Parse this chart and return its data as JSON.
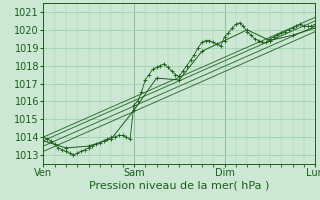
{
  "bg_color": "#cce8d4",
  "plot_bg_color": "#cce8d4",
  "grid_color": "#99ccaa",
  "line_color": "#1a5e1a",
  "marker_color": "#1a5e1a",
  "xlabel": "Pression niveau de la mer( hPa )",
  "yticks": [
    1013,
    1014,
    1015,
    1016,
    1017,
    1018,
    1019,
    1020,
    1021
  ],
  "ylim": [
    1012.5,
    1021.5
  ],
  "xlim": [
    0,
    72
  ],
  "xtick_positions": [
    0,
    24,
    48,
    72
  ],
  "xtick_labels": [
    "Ven",
    "Sam",
    "Dim",
    "Lun"
  ],
  "tick_fontsize": 7,
  "xlabel_fontsize": 8,
  "noisy_line": {
    "x": [
      0,
      1,
      2,
      3,
      4,
      5,
      6,
      7,
      8,
      9,
      10,
      11,
      12,
      13,
      14,
      15,
      16,
      17,
      18,
      19,
      20,
      21,
      22,
      23,
      24,
      25,
      26,
      27,
      28,
      29,
      30,
      31,
      32,
      33,
      34,
      35,
      36,
      37,
      38,
      39,
      40,
      41,
      42,
      43,
      44,
      45,
      46,
      47,
      48,
      49,
      50,
      51,
      52,
      53,
      54,
      55,
      56,
      57,
      58,
      59,
      60,
      61,
      62,
      63,
      64,
      65,
      66,
      67,
      68,
      69,
      70,
      71,
      72
    ],
    "y": [
      1014.0,
      1013.9,
      1013.8,
      1013.6,
      1013.4,
      1013.3,
      1013.2,
      1013.1,
      1013.0,
      1013.1,
      1013.2,
      1013.3,
      1013.4,
      1013.5,
      1013.6,
      1013.7,
      1013.8,
      1013.9,
      1014.0,
      1014.0,
      1014.1,
      1014.1,
      1014.0,
      1013.9,
      1015.8,
      1016.0,
      1016.5,
      1017.2,
      1017.5,
      1017.8,
      1017.9,
      1018.0,
      1018.1,
      1017.9,
      1017.7,
      1017.5,
      1017.4,
      1017.7,
      1018.0,
      1018.3,
      1018.6,
      1019.0,
      1019.3,
      1019.4,
      1019.4,
      1019.3,
      1019.2,
      1019.1,
      1019.6,
      1019.8,
      1020.1,
      1020.3,
      1020.4,
      1020.2,
      1019.9,
      1019.7,
      1019.5,
      1019.4,
      1019.3,
      1019.3,
      1019.5,
      1019.6,
      1019.7,
      1019.8,
      1019.9,
      1020.0,
      1020.1,
      1020.2,
      1020.3,
      1020.2,
      1020.2,
      1020.2,
      1020.3
    ]
  },
  "smooth_line": {
    "x": [
      0,
      6,
      12,
      18,
      24,
      30,
      36,
      42,
      48,
      54,
      60,
      66,
      72
    ],
    "y": [
      1013.8,
      1013.4,
      1013.5,
      1013.9,
      1015.5,
      1017.3,
      1017.2,
      1018.8,
      1019.4,
      1020.0,
      1019.4,
      1019.7,
      1020.1
    ]
  },
  "trend_lines": [
    {
      "x": [
        0,
        72
      ],
      "y": [
        1013.8,
        1020.5
      ]
    },
    {
      "x": [
        0,
        72
      ],
      "y": [
        1013.5,
        1020.2
      ]
    },
    {
      "x": [
        0,
        72
      ],
      "y": [
        1013.2,
        1019.9
      ]
    },
    {
      "x": [
        0,
        72
      ],
      "y": [
        1014.0,
        1020.7
      ]
    }
  ]
}
